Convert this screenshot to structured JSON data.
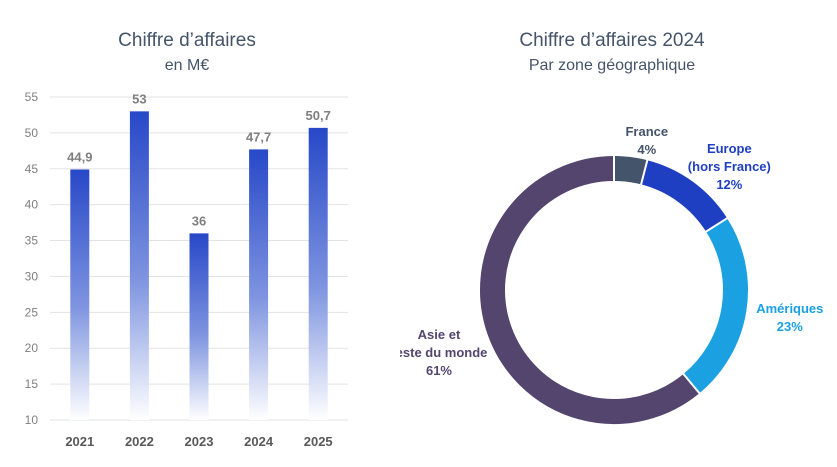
{
  "chart_data": [
    {
      "type": "bar",
      "title": "Chiffre d’affaires",
      "subtitle": "en M€",
      "categories": [
        "2021",
        "2022",
        "2023",
        "2024",
        "2025"
      ],
      "values": [
        44.9,
        53,
        36,
        47.7,
        50.7
      ],
      "value_labels": [
        "44,9",
        "53",
        "36",
        "47,7",
        "50,7"
      ],
      "ylim": [
        10,
        55
      ],
      "yticks": [
        10,
        15,
        20,
        25,
        30,
        35,
        40,
        45,
        50,
        55
      ],
      "grid": true,
      "bar_color": "#2748c8"
    },
    {
      "type": "pie",
      "style": "donut",
      "title": "Chiffre d’affaires 2024",
      "subtitle": "Par zone géographique",
      "slices": [
        {
          "label_lines": [
            "France"
          ],
          "percent": 4,
          "percent_label": "4%",
          "color": "#44546a",
          "label_color": "#44546a"
        },
        {
          "label_lines": [
            "Europe",
            "(hors France)"
          ],
          "percent": 12,
          "percent_label": "12%",
          "color": "#1f3fc2",
          "label_color": "#1f3fc2"
        },
        {
          "label_lines": [
            "Amériques"
          ],
          "percent": 23,
          "percent_label": "23%",
          "color": "#1ba1e2",
          "label_color": "#1ba1e2"
        },
        {
          "label_lines": [
            "Asie et",
            "reste du monde"
          ],
          "percent": 61,
          "percent_label": "61%",
          "color": "#53456e",
          "label_color": "#53456e"
        }
      ]
    }
  ]
}
